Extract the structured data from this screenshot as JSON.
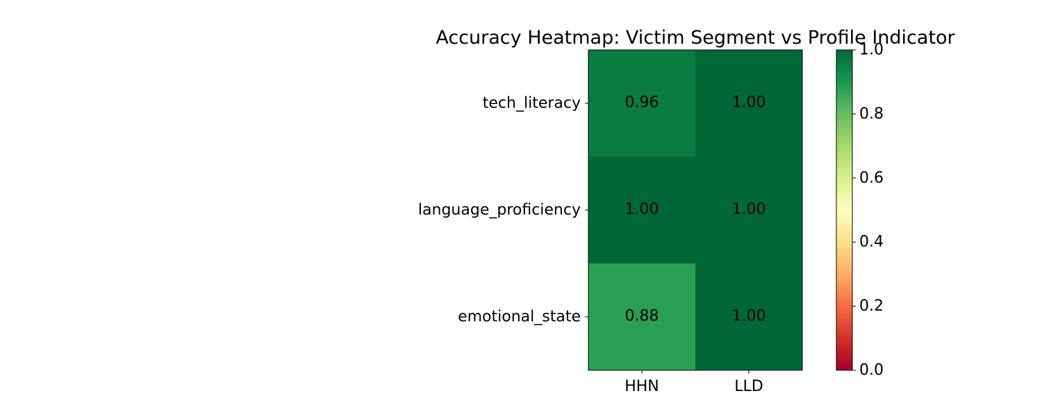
{
  "chart_data": {
    "type": "heatmap",
    "title": "Accuracy Heatmap: Victim Segment vs Profile Indicator",
    "x_categories": [
      "HHN",
      "LLD"
    ],
    "y_categories": [
      "tech_literacy",
      "language_proficiency",
      "emotional_state"
    ],
    "values": [
      [
        0.96,
        1.0
      ],
      [
        1.0,
        1.0
      ],
      [
        0.88,
        1.0
      ]
    ],
    "cell_labels": [
      [
        "0.96",
        "1.00"
      ],
      [
        "1.00",
        "1.00"
      ],
      [
        "0.88",
        "1.00"
      ]
    ],
    "colormap": "RdYlGn",
    "vmin": 0.0,
    "vmax": 1.0,
    "colorbar_ticks": [
      0.0,
      0.2,
      0.4,
      0.6,
      0.8,
      1.0
    ],
    "colorbar_tick_labels": [
      "0.0",
      "0.2",
      "0.4",
      "0.6",
      "0.8",
      "1.0"
    ],
    "colorbar_stops": [
      "#a50026",
      "#d73027",
      "#f46d43",
      "#fdae61",
      "#fee08b",
      "#ffffbf",
      "#d9ef8b",
      "#a6d96a",
      "#66bd63",
      "#1a9850",
      "#006837"
    ],
    "grid": false
  }
}
